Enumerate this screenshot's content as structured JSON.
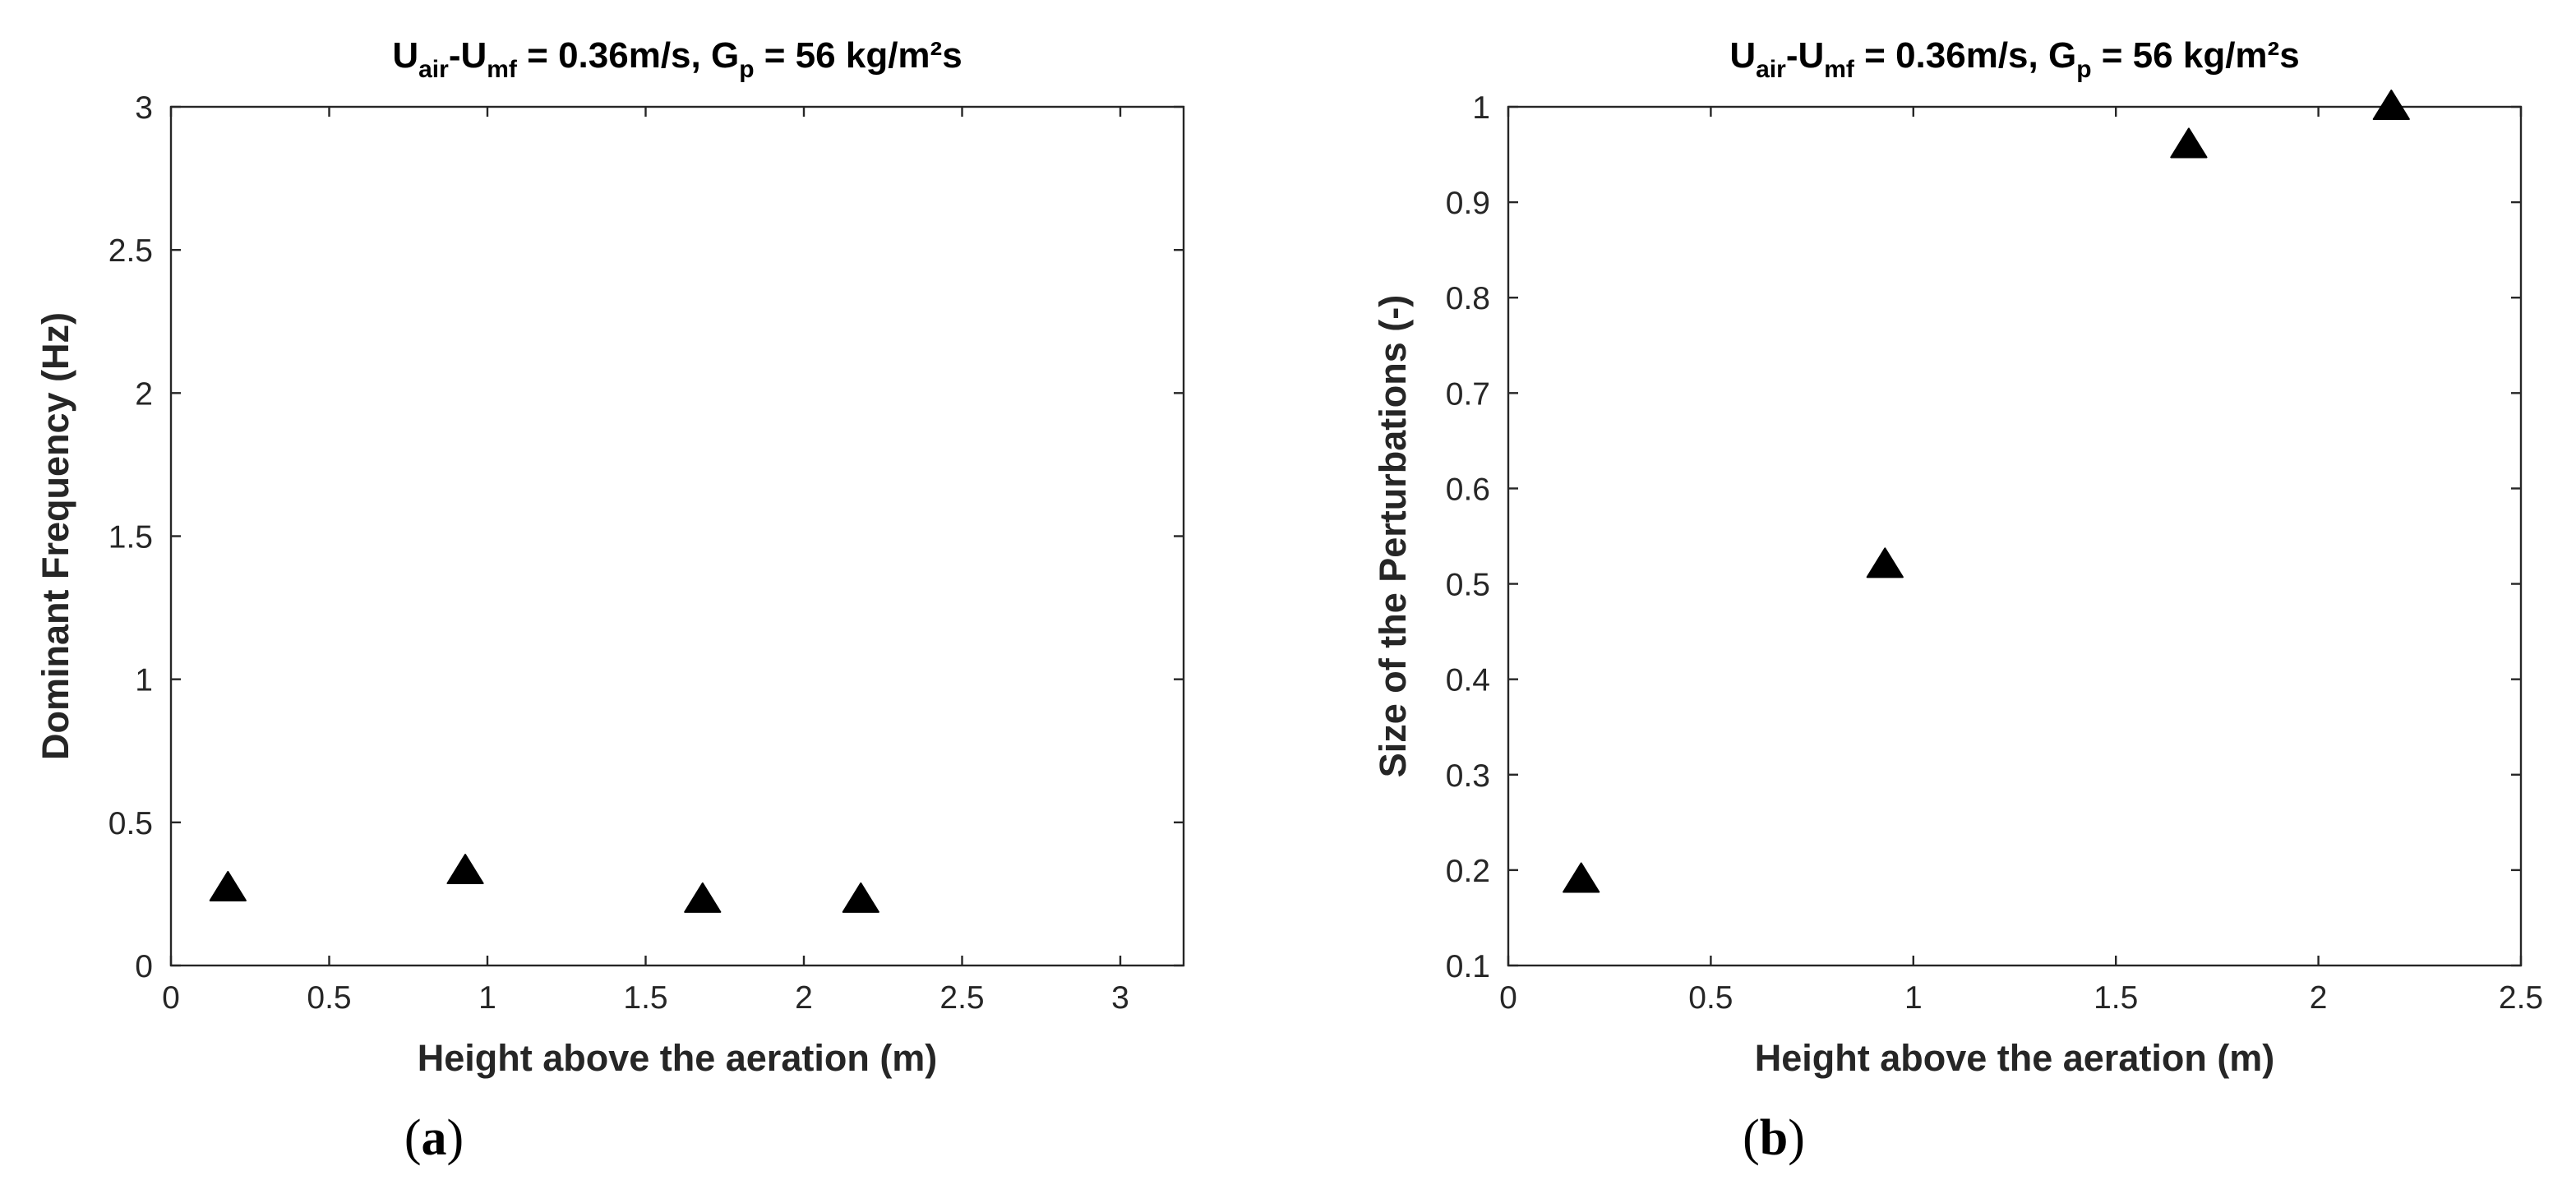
{
  "chart_data": [
    {
      "type": "scatter",
      "panel_label": "a",
      "title": {
        "parts": [
          {
            "t": "U",
            "sub": false
          },
          {
            "t": "air",
            "sub": true
          },
          {
            "t": "-U",
            "sub": false
          },
          {
            "t": "mf",
            "sub": true
          },
          {
            "t": " = 0.36m/s, G",
            "sub": false
          },
          {
            "t": "p",
            "sub": true
          },
          {
            "t": " = 56 kg/m²s",
            "sub": false
          }
        ]
      },
      "xlabel": "Height above the aeration (m)",
      "ylabel": "Dominant Frequency (Hz)",
      "xlim": [
        0,
        3.2
      ],
      "ylim": [
        0,
        3
      ],
      "xticks": [
        "0",
        "0.5",
        "1",
        "1.5",
        "2",
        "2.5",
        "3"
      ],
      "yticks": [
        "0",
        "0.5",
        "1",
        "1.5",
        "2",
        "2.5",
        "3"
      ],
      "marker": "triangle",
      "color": "#000000",
      "series": [
        {
          "x": [
            0.18,
            0.93,
            1.68,
            2.18
          ],
          "y": [
            0.27,
            0.33,
            0.23,
            0.23
          ]
        }
      ]
    },
    {
      "type": "scatter",
      "panel_label": "b",
      "title": {
        "parts": [
          {
            "t": "U",
            "sub": false
          },
          {
            "t": "air",
            "sub": true
          },
          {
            "t": "-U",
            "sub": false
          },
          {
            "t": "mf",
            "sub": true
          },
          {
            "t": " = 0.36m/s, G",
            "sub": false
          },
          {
            "t": "p",
            "sub": true
          },
          {
            "t": " = 56 kg/m²s",
            "sub": false
          }
        ]
      },
      "xlabel": "Height above the aeration (m)",
      "ylabel": "Size of the Perturbations (-)",
      "xlim": [
        0,
        2.5
      ],
      "ylim": [
        0.1,
        1
      ],
      "xticks": [
        "0",
        "0.5",
        "1",
        "1.5",
        "2",
        "2.5"
      ],
      "yticks": [
        "0.1",
        "0.2",
        "0.3",
        "0.4",
        "0.5",
        "0.6",
        "0.7",
        "0.8",
        "0.9",
        "1"
      ],
      "marker": "triangle",
      "color": "#000000",
      "series": [
        {
          "x": [
            0.18,
            0.93,
            1.68,
            2.18
          ],
          "y": [
            0.19,
            0.52,
            0.96,
            1.0
          ]
        }
      ]
    }
  ]
}
